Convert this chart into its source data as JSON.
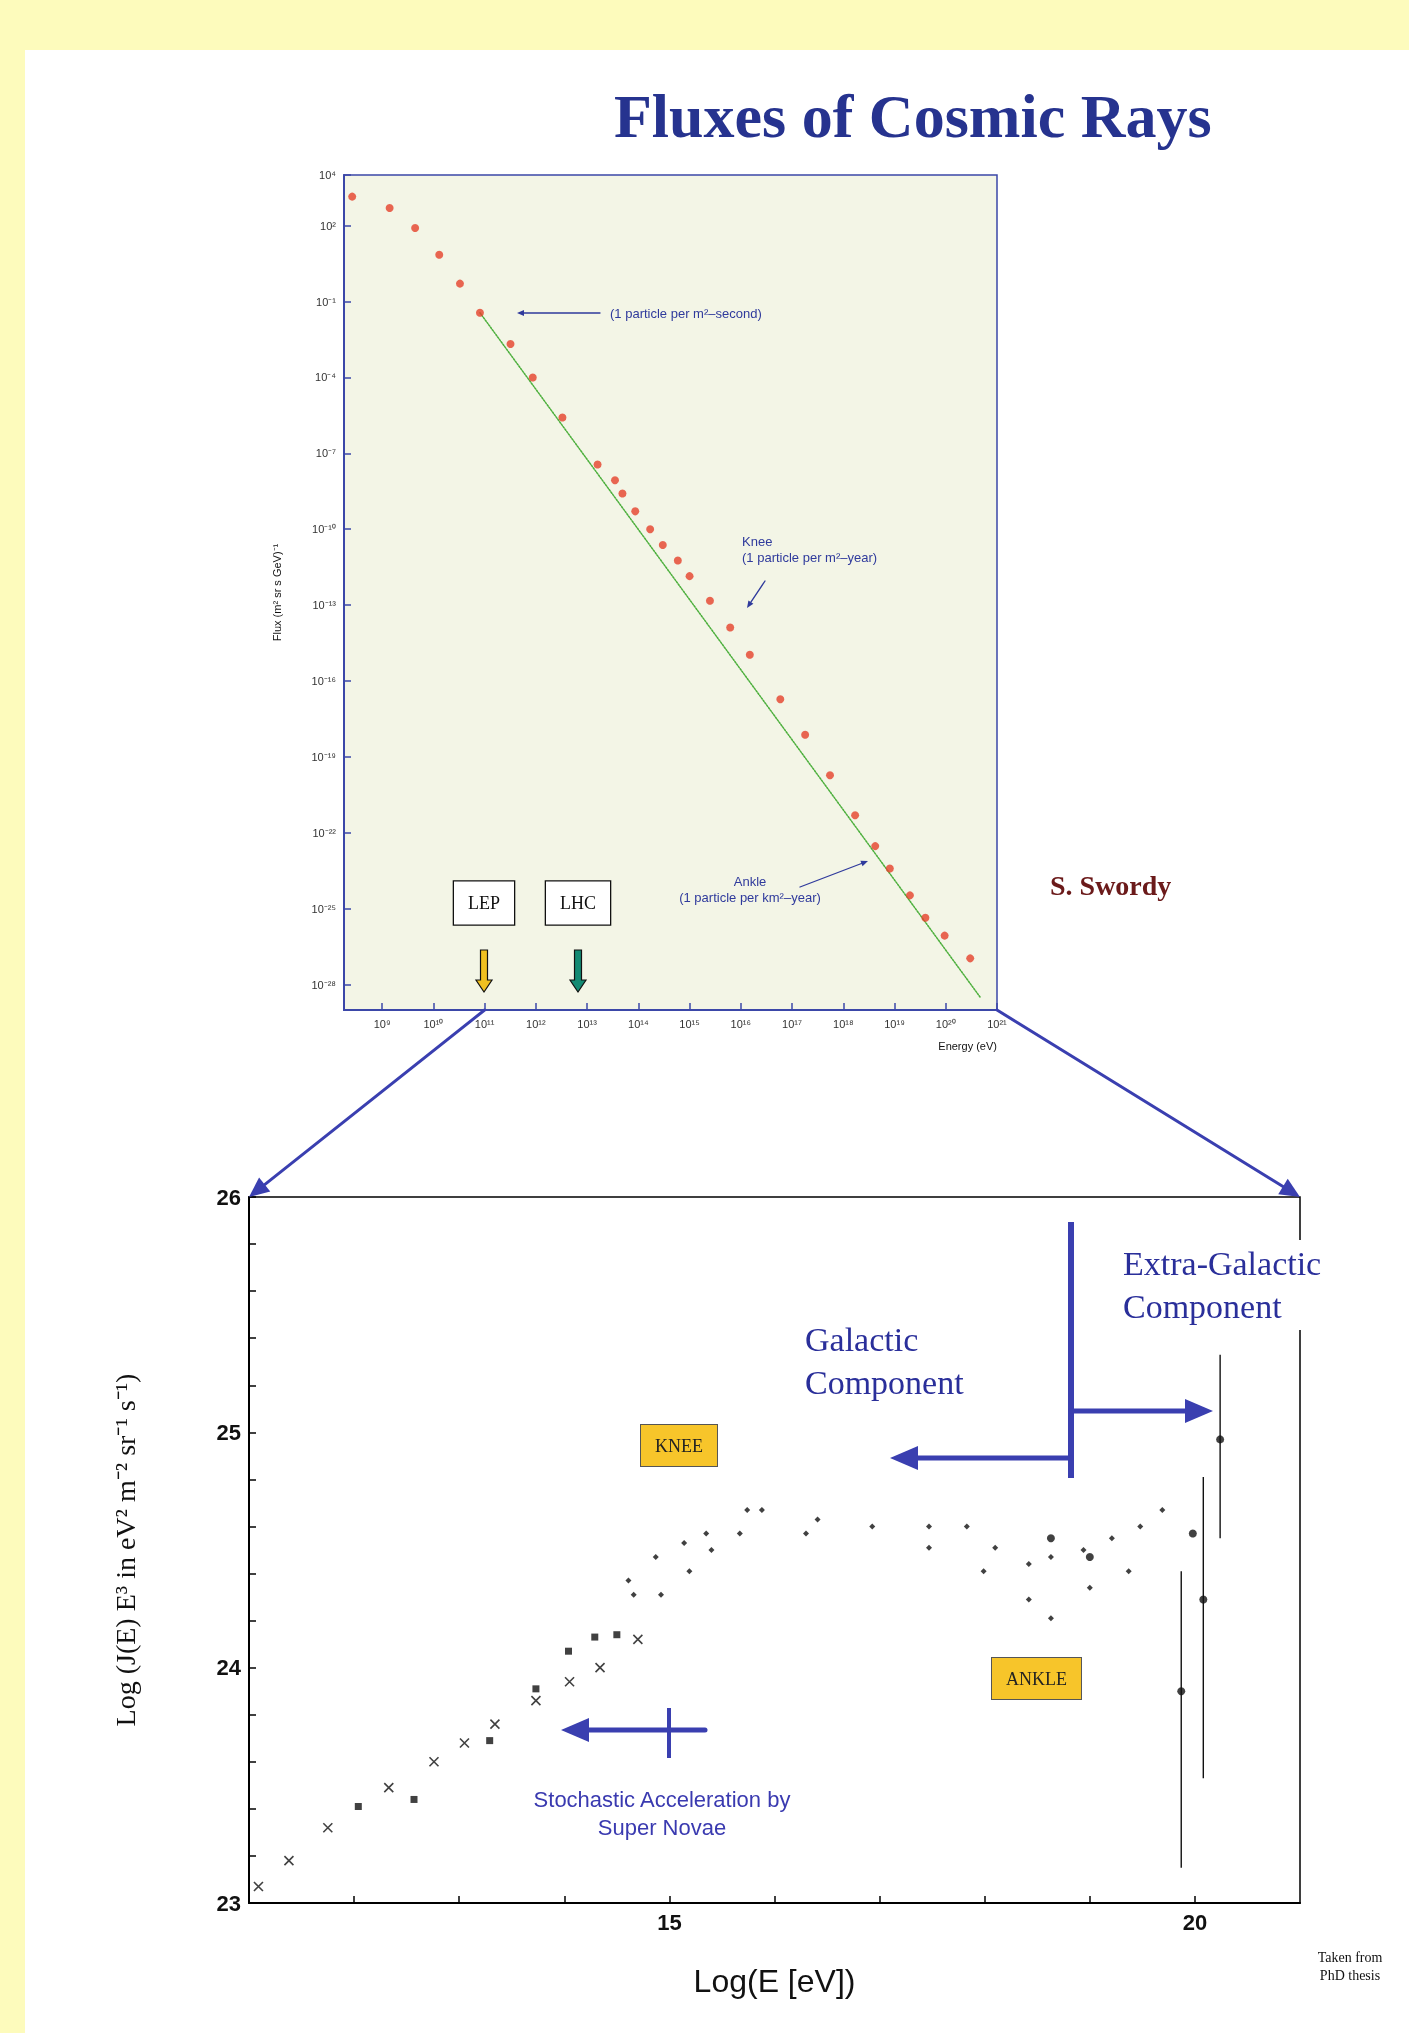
{
  "chart_data": [
    {
      "type": "scatter",
      "title": "Fluxes of Cosmic Rays",
      "xlabel": "Energy (eV)",
      "ylabel": "Flux (m² sr s GeV)⁻¹",
      "log": "xy",
      "xlim": [
        180000000.0,
        1e+21
      ],
      "xticks": [
        {
          "value": 1000000000.0,
          "label": "10⁹"
        },
        {
          "value": 10000000000.0,
          "label": "10¹⁰"
        },
        {
          "value": 100000000000.0,
          "label": "10¹¹"
        },
        {
          "value": 1000000000000.0,
          "label": "10¹²"
        },
        {
          "value": 10000000000000.0,
          "label": "10¹³"
        },
        {
          "value": 100000000000000.0,
          "label": "10¹⁴"
        },
        {
          "value": 1000000000000000.0,
          "label": "10¹⁵"
        },
        {
          "value": 1e+16,
          "label": "10¹⁶"
        },
        {
          "value": 1e+17,
          "label": "10¹⁷"
        },
        {
          "value": 1e+18,
          "label": "10¹⁸"
        },
        {
          "value": 1e+19,
          "label": "10¹⁹"
        },
        {
          "value": 1e+20,
          "label": "10²⁰"
        },
        {
          "value": 1e+21,
          "label": "10²¹"
        }
      ],
      "ylim": [
        1e-29,
        10000.0
      ],
      "yticks": [
        {
          "value": 10000.0,
          "label": "10⁴"
        },
        {
          "value": 100.0,
          "label": "10²"
        },
        {
          "value": 0.1,
          "label": "10⁻¹"
        },
        {
          "value": 0.0001,
          "label": "10⁻⁴"
        },
        {
          "value": 1e-07,
          "label": "10⁻⁷"
        },
        {
          "value": 1e-10,
          "label": "10⁻¹⁰"
        },
        {
          "value": 1e-13,
          "label": "10⁻¹³"
        },
        {
          "value": 1e-16,
          "label": "10⁻¹⁶"
        },
        {
          "value": 1e-19,
          "label": "10⁻¹⁹"
        },
        {
          "value": 1e-22,
          "label": "10⁻²²"
        },
        {
          "value": 1e-25,
          "label": "10⁻²⁵"
        },
        {
          "value": 1e-28,
          "label": "10⁻²⁸"
        }
      ],
      "series": [
        {
          "color": "#e5412a",
          "marker": "circle",
          "x": [
            260000000.0,
            1400000000.0,
            4400000000.0,
            13000000000.0,
            33000000000.0,
            81000000000.0,
            320000000000.0,
            870000000000.0,
            3300000000000.0,
            16000000000000.0,
            35000000000000.0,
            49000000000000.0,
            87000000000000.0,
            170000000000000.0,
            300000000000000.0,
            590000000000000.0,
            1000000000000000.0,
            2500000000000000.0,
            6200000000000000.0,
            1.5e+16,
            5.9e+16,
            1.8e+17,
            5.5e+17,
            1.7e+18,
            4.2e+18,
            8.1e+18,
            2e+19,
            4e+19,
            9.5e+19,
            3e+20
          ],
          "values": [
            1400,
            500,
            81,
            7.1,
            0.51,
            0.036,
            0.0021,
            0.0001,
            2.6e-06,
            3.6e-08,
            8.7e-09,
            2.6e-09,
            5.1e-10,
            1e-10,
            2.4e-11,
            5.8e-12,
            1.4e-12,
            1.5e-13,
            1.3e-14,
            1.1e-15,
            1.9e-17,
            7.6e-19,
            1.9e-20,
            5e-22,
            3e-23,
            3.9e-24,
            3.4e-25,
            4.4e-26,
            8.7e-27,
            1.1e-27
          ]
        },
        {
          "type": "line",
          "color": "#4caf3c",
          "marker": "none",
          "line_style": "dotted",
          "x": [
            81000000000.0,
            4.7e+20
          ],
          "values": [
            0.036,
            3.2e-29
          ]
        }
      ],
      "annotations": [
        "(1 particle per m²–second)",
        "Knee\n(1 particle per m²–year)",
        "Ankle\n(1 particle per km²–year)",
        "LEP",
        "LHC",
        "S. Swordy"
      ]
    },
    {
      "type": "scatter",
      "xlabel": "Log(E [eV])",
      "ylabel": "Log (J(E) E³ in eV² m⁻² sr⁻¹ s⁻¹)",
      "xlim": [
        11,
        21
      ],
      "xticks": [
        {
          "value": 12,
          "label": null
        },
        {
          "value": 13,
          "label": null
        },
        {
          "value": 14,
          "label": null
        },
        15,
        {
          "value": 16,
          "label": null
        },
        {
          "value": 17,
          "label": null
        },
        {
          "value": 18,
          "label": null
        },
        {
          "value": 19,
          "label": null
        },
        20
      ],
      "ylim": [
        23,
        26
      ],
      "yticks": [
        23,
        {
          "value": 23.2,
          "label": null
        },
        {
          "value": 23.4,
          "label": null
        },
        {
          "value": 23.6,
          "label": null
        },
        {
          "value": 23.8,
          "label": null
        },
        24,
        {
          "value": 24.2,
          "label": null
        },
        {
          "value": 24.4,
          "label": null
        },
        {
          "value": 24.6,
          "label": null
        },
        {
          "value": 24.8,
          "label": null
        },
        25,
        {
          "value": 25.2,
          "label": null
        },
        {
          "value": 25.4,
          "label": null
        },
        {
          "value": 25.6,
          "label": null
        },
        {
          "value": 25.8,
          "label": null
        },
        26
      ],
      "series": [
        {
          "color": "#111111",
          "marker": "cross",
          "x": [
            11.09,
            11.38,
            11.75,
            12.33,
            12.76,
            13.05,
            13.34,
            13.73,
            14.05,
            14.34,
            14.7
          ],
          "values": [
            23.07,
            23.18,
            23.32,
            23.49,
            23.6,
            23.68,
            23.76,
            23.86,
            23.94,
            24.0,
            24.12
          ]
        },
        {
          "color": "#111111",
          "marker": "square",
          "x": [
            12.04,
            12.57,
            13.29,
            13.73,
            14.04,
            14.29,
            14.5
          ],
          "values": [
            23.41,
            23.44,
            23.69,
            23.91,
            24.07,
            24.13,
            24.14
          ]
        },
        {
          "color": "#111111",
          "marker": "diamond",
          "x": [
            14.61,
            14.87,
            15.14,
            15.35,
            15.74,
            15.88,
            16.41,
            16.93,
            17.47,
            17.83,
            18.1,
            18.42,
            18.63,
            18.94,
            19.21,
            19.48,
            19.69,
            14.66,
            14.92,
            15.19,
            15.4,
            15.67,
            16.3,
            17.47,
            17.99,
            18.42,
            18.63,
            19.0,
            19.37
          ],
          "values": [
            24.37,
            24.47,
            24.53,
            24.57,
            24.67,
            24.67,
            24.63,
            24.6,
            24.6,
            24.6,
            24.51,
            24.44,
            24.47,
            24.5,
            24.55,
            24.6,
            24.67,
            24.31,
            24.31,
            24.41,
            24.5,
            24.57,
            24.57,
            24.51,
            24.41,
            24.29,
            24.21,
            24.34,
            24.41
          ]
        },
        {
          "color": "#111111",
          "marker": "circle",
          "x": [
            18.63,
            19.0,
            19.98,
            20.08,
            19.87,
            20.24
          ],
          "values": [
            24.55,
            24.47,
            24.57,
            24.29,
            23.9,
            24.97
          ],
          "errors": [
            null,
            null,
            null,
            [
              23.53,
              24.81
            ],
            [
              23.15,
              24.41
            ],
            [
              24.55,
              25.33
            ]
          ]
        }
      ],
      "annotations": [
        "KNEE",
        "ANKLE",
        "Galactic\nComponent",
        "Extra-Galactic\nComponent",
        "Stochastic Acceleration by\nSuper Novae",
        "Taken from\nPhD thesis"
      ]
    }
  ]
}
